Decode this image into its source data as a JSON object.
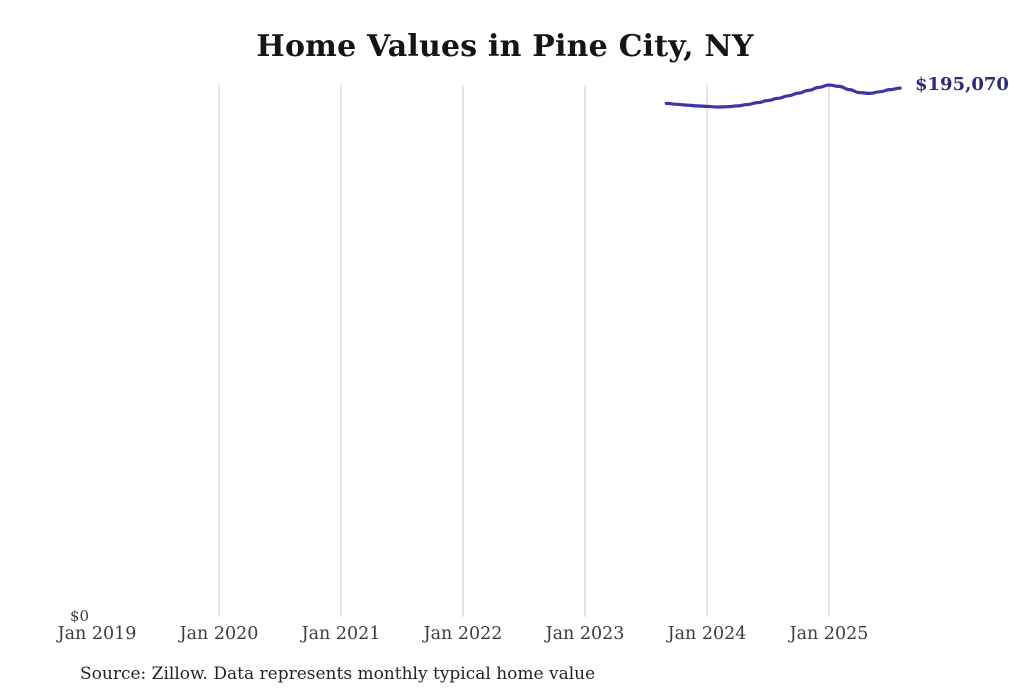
{
  "header": {
    "title": "Home Values in Pine City, NY"
  },
  "chart_data": {
    "type": "line",
    "title": "Home Values in Pine City, NY",
    "xlabel": "",
    "ylabel": "",
    "ylim": [
      0,
      196200
    ],
    "grid": "vertical-only",
    "grid_color": "#cccccc",
    "y_zero_label": "$0",
    "current_value_label": "$195,070",
    "current_value_label_color": "#2d2a75",
    "x_ticks": [
      {
        "label": "Jan 2019",
        "gridline": false
      },
      {
        "label": "Jan 2020",
        "gridline": true
      },
      {
        "label": "Jan 2021",
        "gridline": true
      },
      {
        "label": "Jan 2022",
        "gridline": true
      },
      {
        "label": "Jan 2023",
        "gridline": true
      },
      {
        "label": "Jan 2024",
        "gridline": true
      },
      {
        "label": "Jan 2025",
        "gridline": true
      }
    ],
    "series": [
      {
        "name": "Monthly typical home value",
        "color": "#3d36a6",
        "x": [
          "2023-09",
          "2023-10",
          "2023-11",
          "2023-12",
          "2024-01",
          "2024-02",
          "2024-03",
          "2024-04",
          "2024-05",
          "2024-06",
          "2024-07",
          "2024-08",
          "2024-09",
          "2024-10",
          "2024-11",
          "2024-12",
          "2025-01",
          "2025-02",
          "2025-03",
          "2025-04",
          "2025-05",
          "2025-06",
          "2025-07",
          "2025-08"
        ],
        "values": [
          189400,
          189100,
          188800,
          188500,
          188300,
          188100,
          188200,
          188500,
          189000,
          189700,
          190500,
          191300,
          192200,
          193200,
          194200,
          195300,
          196200,
          195700,
          194500,
          193400,
          193100,
          193700,
          194500,
          195070
        ]
      }
    ]
  },
  "footer": {
    "source": "Source: Zillow. Data represents monthly typical home value"
  }
}
